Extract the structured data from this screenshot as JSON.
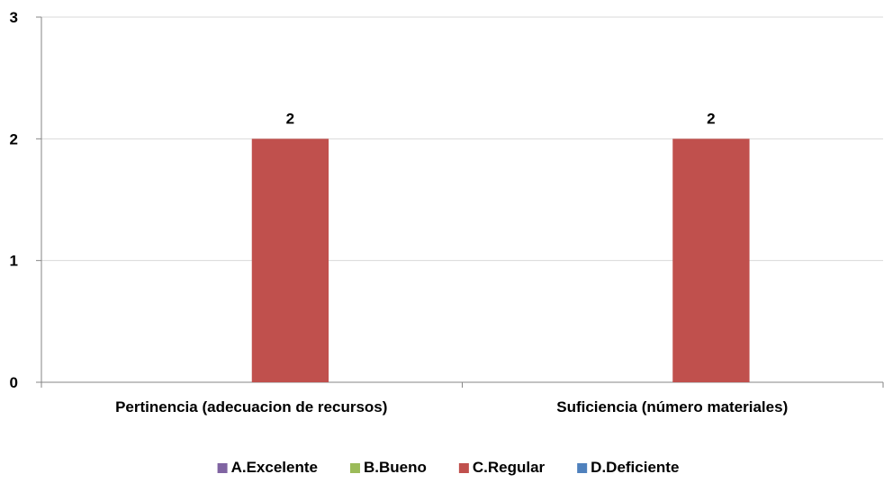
{
  "chart_data": {
    "type": "bar",
    "categories": [
      "Pertinencia (adecuacion de recursos)",
      "Suficiencia (número materiales)"
    ],
    "series": [
      {
        "name": "A.Excelente",
        "color": "#8064A2",
        "values": [
          0,
          0
        ]
      },
      {
        "name": "B.Bueno",
        "color": "#9BBB59",
        "values": [
          0,
          0
        ]
      },
      {
        "name": "C.Regular",
        "color": "#C0504D",
        "values": [
          2,
          2
        ]
      },
      {
        "name": "D.Deficiente",
        "color": "#4F81BD",
        "values": [
          0,
          0
        ]
      }
    ],
    "data_labels": {
      "C.Regular": [
        "2",
        "2"
      ]
    },
    "ylim": [
      0,
      3
    ],
    "yticks": [
      "0",
      "1",
      "2",
      "3"
    ],
    "grid": true,
    "legend_position": "bottom"
  }
}
